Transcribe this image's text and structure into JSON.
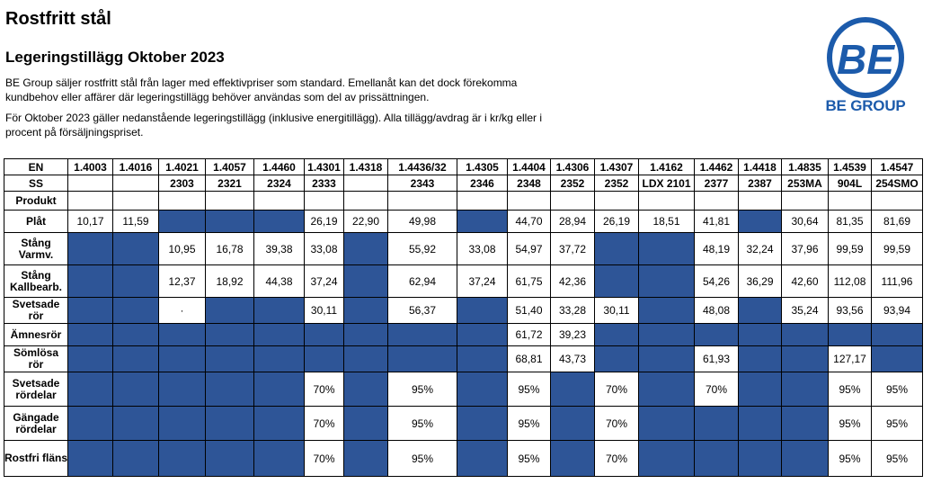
{
  "header": {
    "title": "Rostfritt stål",
    "subtitle": "Legeringstillägg Oktober 2023",
    "paragraph1": "BE Group säljer rostfritt stål från lager med effektivpriser som standard. Emellanåt kan det dock förekomma kundbehov eller affärer där legeringstillägg behöver användas som del av prissättningen.",
    "paragraph2": "För Oktober 2023 gäller nedanstående legeringstillägg (inklusive energitillägg). Alla tillägg/avdrag är i kr/kg eller i procent på försäljningspriset."
  },
  "logo": {
    "mark": "BE",
    "text": "BE GROUP",
    "color": "#1c5bab"
  },
  "table": {
    "blue": "#2e5597",
    "labels": {
      "en": "EN",
      "ss": "SS",
      "produkt": "Produkt"
    },
    "en": [
      "1.4003",
      "1.4016",
      "1.4021",
      "1.4057",
      "1.4460",
      "1.4301",
      "1.4318",
      "1.4436/32",
      "1.4305",
      "1.4404",
      "1.4306",
      "1.4307",
      "1.4162",
      "1.4462",
      "1.4418",
      "1.4835",
      "1.4539",
      "1.4547"
    ],
    "ss": [
      "",
      "",
      "2303",
      "2321",
      "2324",
      "2333",
      "",
      "2343",
      "2346",
      "2348",
      "2352",
      "2352",
      "LDX 2101",
      "2377",
      "2387",
      "253MA",
      "904L",
      "254SMO"
    ],
    "rows": [
      {
        "label": "Plåt",
        "cells": [
          "10,17",
          "11,59",
          null,
          null,
          null,
          "26,19",
          "22,90",
          "49,98",
          null,
          "44,70",
          "28,94",
          "26,19",
          "18,51",
          "41,81",
          null,
          "30,64",
          "81,35",
          "81,69"
        ]
      },
      {
        "label": "Stång Varmv.",
        "cells": [
          null,
          null,
          "10,95",
          "16,78",
          "39,38",
          "33,08",
          null,
          "55,92",
          "33,08",
          "54,97",
          "37,72",
          null,
          null,
          "48,19",
          "32,24",
          "37,96",
          "99,59",
          "99,59"
        ]
      },
      {
        "label": "Stång Kallbearb.",
        "cells": [
          null,
          null,
          "12,37",
          "18,92",
          "44,38",
          "37,24",
          null,
          "62,94",
          "37,24",
          "61,75",
          "42,36",
          null,
          null,
          "54,26",
          "36,29",
          "42,60",
          "112,08",
          "111,96"
        ]
      },
      {
        "label": "Svetsade rör",
        "cells": [
          null,
          null,
          "·",
          null,
          null,
          "30,11",
          null,
          "56,37",
          null,
          "51,40",
          "33,28",
          "30,11",
          null,
          "48,08",
          null,
          "35,24",
          "93,56",
          "93,94"
        ]
      },
      {
        "label": "Ämnesrör",
        "cells": [
          null,
          null,
          null,
          null,
          null,
          null,
          null,
          null,
          null,
          "61,72",
          "39,23",
          null,
          null,
          null,
          null,
          null,
          null,
          null
        ]
      },
      {
        "label": "Sömlösa rör",
        "cells": [
          null,
          null,
          null,
          null,
          null,
          null,
          null,
          null,
          null,
          "68,81",
          "43,73",
          null,
          null,
          "61,93",
          null,
          null,
          "127,17",
          null
        ]
      },
      {
        "label": "Svetsade rördelar",
        "cells": [
          null,
          null,
          null,
          null,
          null,
          "70%",
          null,
          "95%",
          null,
          "95%",
          null,
          "70%",
          null,
          "70%",
          null,
          null,
          "95%",
          "95%"
        ]
      },
      {
        "label": "Gängade rördelar",
        "cells": [
          null,
          null,
          null,
          null,
          null,
          "70%",
          null,
          "95%",
          null,
          "95%",
          null,
          "70%",
          null,
          null,
          null,
          null,
          "95%",
          "95%"
        ]
      },
      {
        "label": "Rostfri fläns",
        "cells": [
          null,
          null,
          null,
          null,
          null,
          "70%",
          null,
          "95%",
          null,
          "95%",
          null,
          "70%",
          null,
          null,
          null,
          null,
          "95%",
          "95%"
        ]
      }
    ]
  }
}
